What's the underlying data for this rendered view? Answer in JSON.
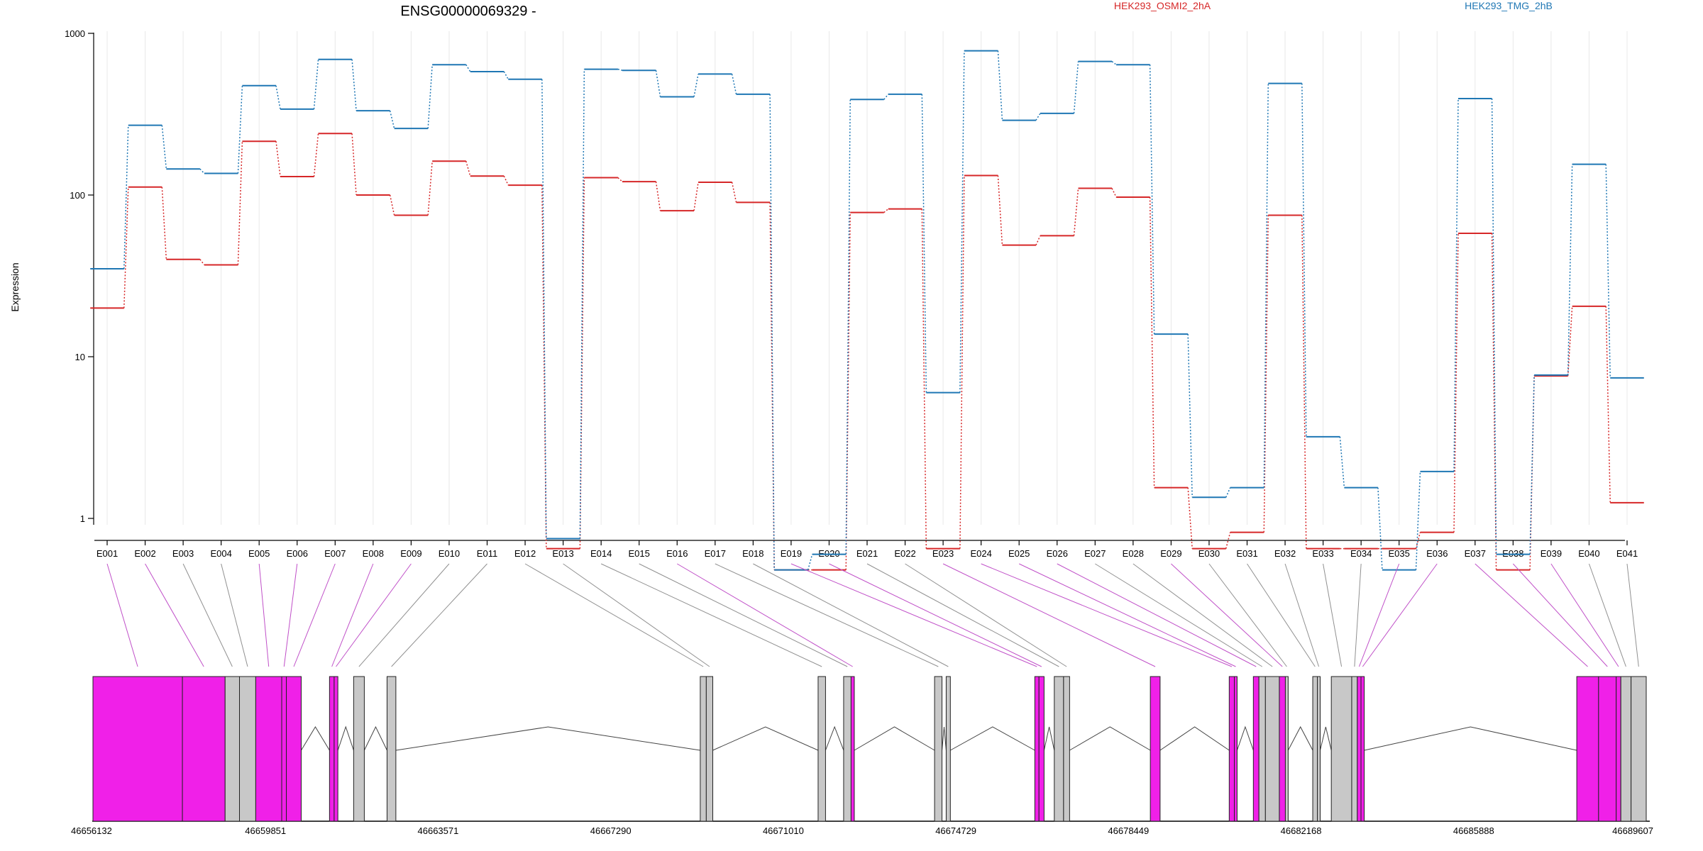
{
  "chart_data": {
    "type": "line",
    "title": "ENSG00000069329 -",
    "ylabel": "Expression",
    "yscale": "log",
    "ylim": [
      0.42,
      1000
    ],
    "yticks": [
      1,
      10,
      100,
      1000
    ],
    "ytick_labels": [
      "1",
      "10",
      "100",
      "1000"
    ],
    "grid": "vertical",
    "categories": [
      "E001",
      "E002",
      "E003",
      "E004",
      "E005",
      "E006",
      "E007",
      "E008",
      "E009",
      "E010",
      "E011",
      "E012",
      "E013",
      "E014",
      "E015",
      "E016",
      "E017",
      "E018",
      "E019",
      "E020",
      "E021",
      "E022",
      "E023",
      "E024",
      "E025",
      "E026",
      "E027",
      "E028",
      "E029",
      "E030",
      "E031",
      "E032",
      "E033",
      "E034",
      "E035",
      "E036",
      "E037",
      "E038",
      "E039",
      "E040",
      "E041"
    ],
    "series": [
      {
        "name": "HEK293_OSMI2_2hA",
        "color": "#d62728",
        "values": [
          20,
          112,
          40,
          37,
          215,
          130,
          240,
          100,
          75,
          162,
          131,
          115,
          0.65,
          128,
          121,
          80,
          120,
          90,
          0.48,
          0.48,
          78,
          82,
          0.65,
          132,
          49,
          56,
          110,
          97,
          1.55,
          0.65,
          0.82,
          75,
          0.65,
          0.65,
          0.65,
          0.82,
          58,
          0.48,
          7.6,
          20.5,
          1.25
        ]
      },
      {
        "name": "HEK293_TMG_2hB",
        "color": "#1f77b4",
        "values": [
          35,
          270,
          145,
          136,
          475,
          340,
          690,
          332,
          258,
          640,
          580,
          520,
          0.75,
          600,
          590,
          405,
          560,
          420,
          0.48,
          0.6,
          390,
          420,
          6,
          780,
          290,
          320,
          670,
          640,
          13.8,
          1.35,
          1.55,
          490,
          3.2,
          1.55,
          0.48,
          1.95,
          395,
          0.6,
          7.7,
          155,
          7.4
        ]
      }
    ],
    "genomic_axis": {
      "tick_labels": [
        "46656132",
        "46659851",
        "46663571",
        "46667290",
        "46671010",
        "46674729",
        "46678449",
        "46682168",
        "46685888",
        "46689607"
      ],
      "range": [
        46656132,
        46689607
      ]
    },
    "exon_colors": {
      "significant": "#f020e8",
      "normal": "#c8c8c8"
    },
    "exons": [
      {
        "id": "E001",
        "start": 46656132,
        "end": 46658060,
        "sig": true
      },
      {
        "id": "E002",
        "start": 46658060,
        "end": 46658980,
        "sig": true
      },
      {
        "id": "E003",
        "start": 46658980,
        "end": 46659290,
        "sig": false
      },
      {
        "id": "E004",
        "start": 46659290,
        "end": 46659640,
        "sig": false
      },
      {
        "id": "E005",
        "start": 46659640,
        "end": 46660200,
        "sig": true
      },
      {
        "id": "E006",
        "start": 46660200,
        "end": 46660300,
        "sig": true
      },
      {
        "id": "E007",
        "start": 46660300,
        "end": 46660620,
        "sig": true
      },
      {
        "id": "E008",
        "start": 46661230,
        "end": 46661330,
        "sig": true
      },
      {
        "id": "E009",
        "start": 46661330,
        "end": 46661410,
        "sig": true
      },
      {
        "id": "E010",
        "start": 46661750,
        "end": 46661980,
        "sig": false
      },
      {
        "id": "E011",
        "start": 46662470,
        "end": 46662660,
        "sig": false
      },
      {
        "id": "E012",
        "start": 46669220,
        "end": 46669350,
        "sig": false
      },
      {
        "id": "E013",
        "start": 46669350,
        "end": 46669490,
        "sig": false
      },
      {
        "id": "E014",
        "start": 46671760,
        "end": 46671920,
        "sig": false
      },
      {
        "id": "E015",
        "start": 46672310,
        "end": 46672470,
        "sig": false
      },
      {
        "id": "E016",
        "start": 46672470,
        "end": 46672540,
        "sig": true
      },
      {
        "id": "E017",
        "start": 46674270,
        "end": 46674430,
        "sig": false
      },
      {
        "id": "E018",
        "start": 46674520,
        "end": 46674610,
        "sig": false
      },
      {
        "id": "E019",
        "start": 46676430,
        "end": 46676520,
        "sig": true
      },
      {
        "id": "E020",
        "start": 46676520,
        "end": 46676630,
        "sig": true
      },
      {
        "id": "E021",
        "start": 46676850,
        "end": 46677050,
        "sig": false
      },
      {
        "id": "E022",
        "start": 46677050,
        "end": 46677180,
        "sig": false
      },
      {
        "id": "E023",
        "start": 46678920,
        "end": 46679130,
        "sig": true
      },
      {
        "id": "E024",
        "start": 46680620,
        "end": 46680730,
        "sig": true
      },
      {
        "id": "E025",
        "start": 46680730,
        "end": 46680790,
        "sig": true
      },
      {
        "id": "E026",
        "start": 46681140,
        "end": 46681260,
        "sig": true
      },
      {
        "id": "E027",
        "start": 46681260,
        "end": 46681400,
        "sig": false
      },
      {
        "id": "E028",
        "start": 46681400,
        "end": 46681700,
        "sig": false
      },
      {
        "id": "E029",
        "start": 46681700,
        "end": 46681830,
        "sig": true
      },
      {
        "id": "E030",
        "start": 46681830,
        "end": 46681890,
        "sig": false
      },
      {
        "id": "E031",
        "start": 46682420,
        "end": 46682520,
        "sig": false
      },
      {
        "id": "E032",
        "start": 46682520,
        "end": 46682580,
        "sig": false
      },
      {
        "id": "E033",
        "start": 46682820,
        "end": 46683260,
        "sig": false
      },
      {
        "id": "E034",
        "start": 46683260,
        "end": 46683380,
        "sig": false
      },
      {
        "id": "E035",
        "start": 46683380,
        "end": 46683460,
        "sig": true
      },
      {
        "id": "E036",
        "start": 46683460,
        "end": 46683530,
        "sig": true
      },
      {
        "id": "E037",
        "start": 46688110,
        "end": 46688580,
        "sig": true
      },
      {
        "id": "E038",
        "start": 46688580,
        "end": 46688960,
        "sig": true
      },
      {
        "id": "E039",
        "start": 46688960,
        "end": 46689060,
        "sig": true
      },
      {
        "id": "E040",
        "start": 46689060,
        "end": 46689280,
        "sig": false
      },
      {
        "id": "E041",
        "start": 46689280,
        "end": 46689607,
        "sig": false
      }
    ]
  }
}
